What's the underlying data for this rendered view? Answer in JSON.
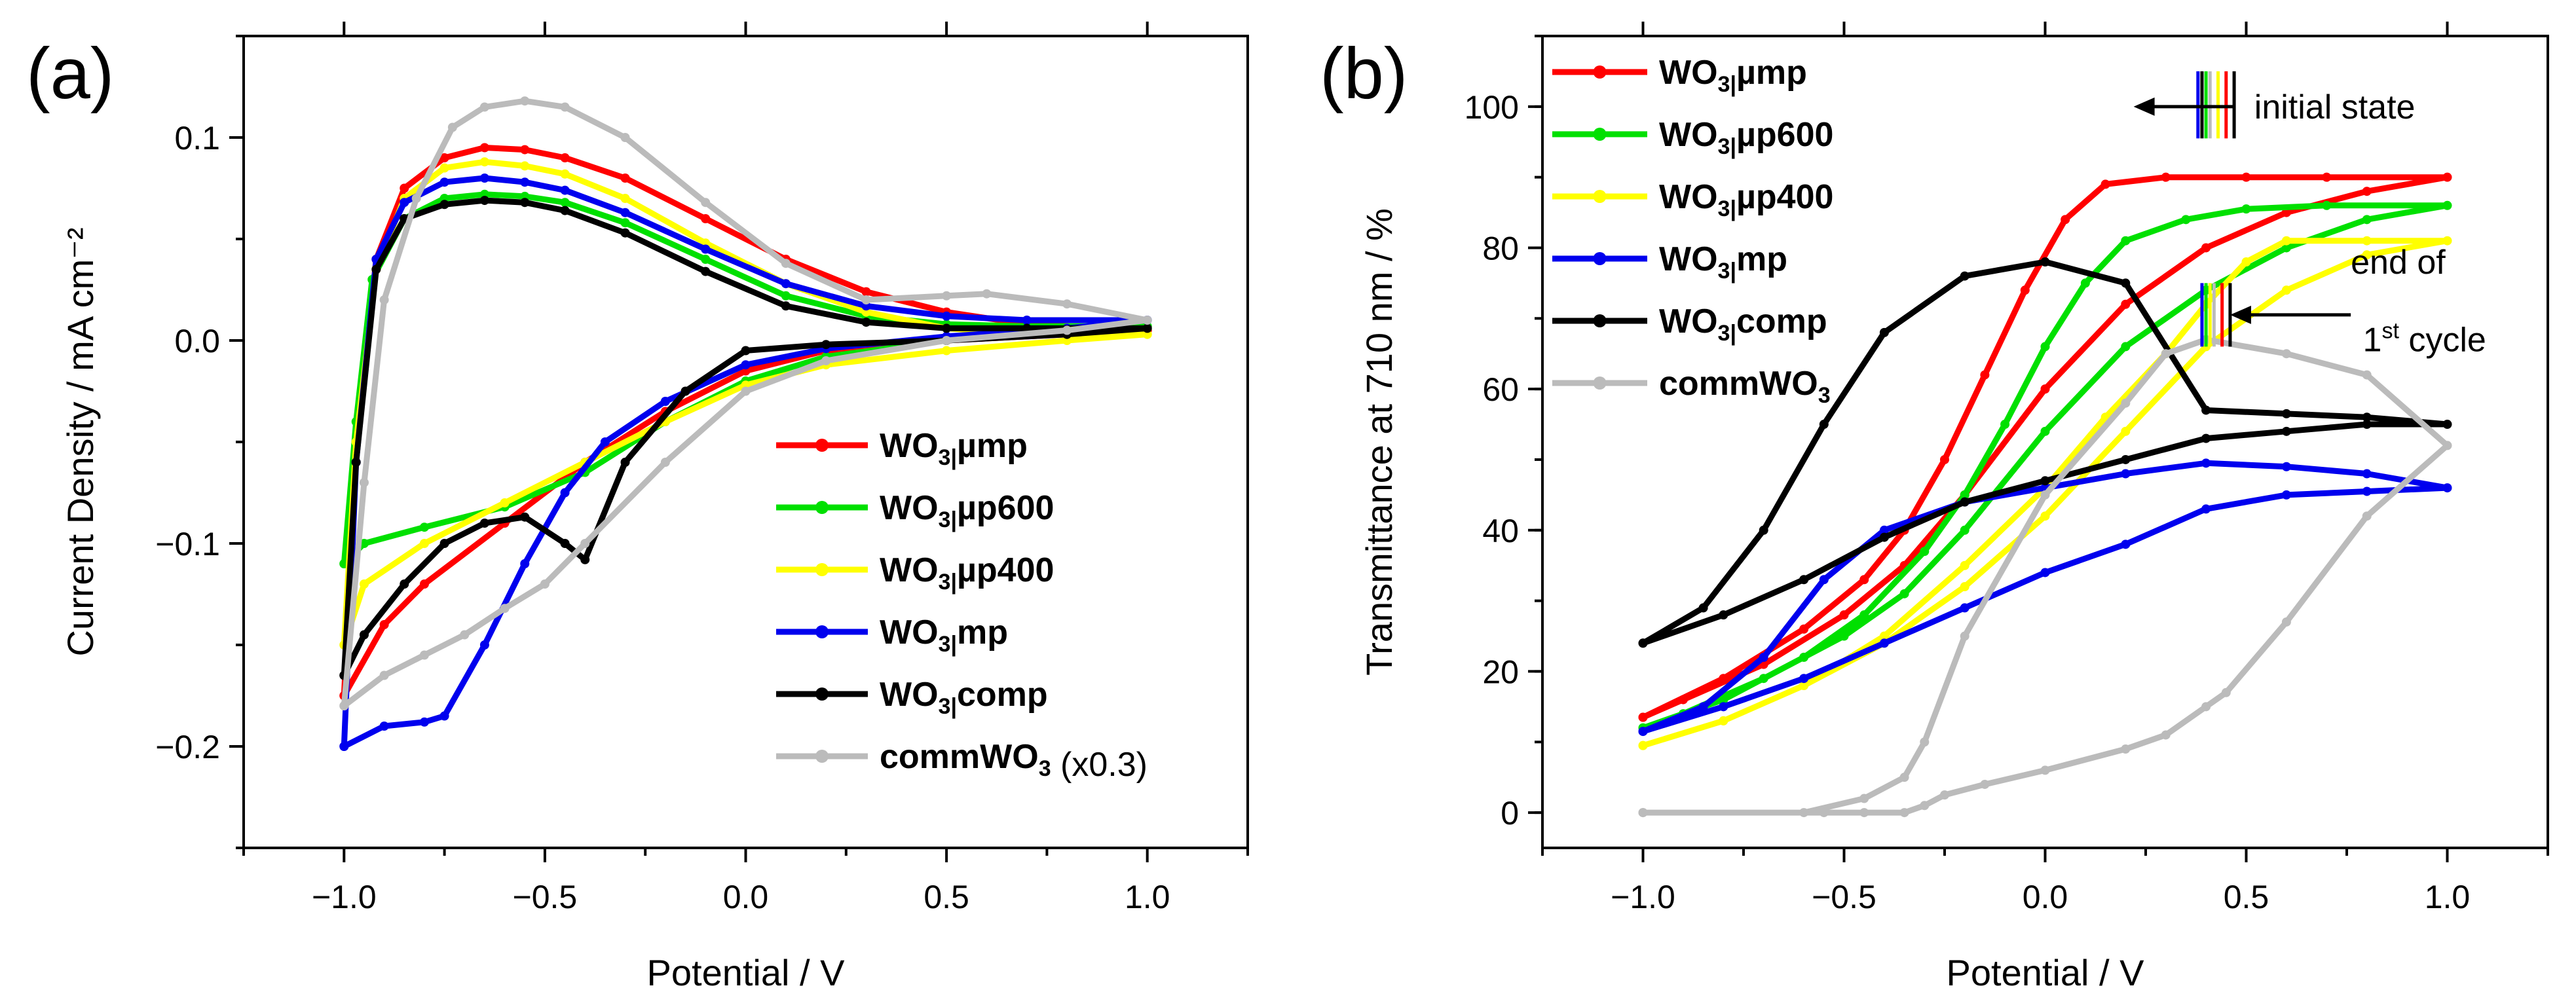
{
  "figure": {
    "panels": [
      "(a)",
      "(b)"
    ]
  },
  "colors": {
    "wo3_ump": "#ff0000",
    "wo3_up600": "#00e000",
    "wo3_up400": "#ffff00",
    "wo3_mp": "#0000ee",
    "wo3_comp": "#000000",
    "comm_wo3": "#bbbbbb"
  },
  "chart_data": [
    {
      "type": "line",
      "panel": "(a)",
      "xlabel": "Potential / V",
      "ylabel": "Current Density / mA cm⁻²",
      "xlim": [
        -1.25,
        1.25
      ],
      "ylim": [
        -0.25,
        0.15
      ],
      "xticks": [
        -1.0,
        -0.5,
        0.0,
        0.5,
        1.0
      ],
      "xtick_labels": [
        "−1.0",
        "−0.5",
        "0.0",
        "0.5",
        "1.0"
      ],
      "yticks": [
        -0.2,
        -0.1,
        0.0,
        0.1
      ],
      "ytick_labels": [
        "−0.2",
        "−0.1",
        "0.0",
        "0.1"
      ],
      "legend_position": "lower-right",
      "series": [
        {
          "name": "WO3|µmp",
          "sub": "3|",
          "pre": "WO",
          "post": "µmp",
          "suffix": "",
          "color_key": "wo3_ump",
          "marker": "circle",
          "x": [
            -1.0,
            -0.97,
            -0.92,
            -0.85,
            -0.75,
            -0.65,
            -0.55,
            -0.45,
            -0.3,
            -0.1,
            0.1,
            0.3,
            0.5,
            0.7,
            1.0,
            0.8,
            0.5,
            0.2,
            0.0,
            -0.2,
            -0.4,
            -0.6,
            -0.8,
            -0.9,
            -1.0
          ],
          "y": [
            -0.175,
            -0.05,
            0.04,
            0.075,
            0.09,
            0.095,
            0.094,
            0.09,
            0.08,
            0.06,
            0.04,
            0.024,
            0.014,
            0.008,
            0.005,
            0.003,
            0.0,
            -0.005,
            -0.015,
            -0.035,
            -0.06,
            -0.09,
            -0.12,
            -0.14,
            -0.175
          ]
        },
        {
          "name": "WO3|µp600",
          "sub": "3|",
          "pre": "WO",
          "post": "µp600",
          "suffix": "",
          "color_key": "wo3_up600",
          "marker": "square",
          "x": [
            -1.0,
            -0.97,
            -0.93,
            -0.85,
            -0.75,
            -0.65,
            -0.55,
            -0.45,
            -0.3,
            -0.1,
            0.1,
            0.3,
            0.5,
            0.7,
            1.0,
            0.8,
            0.5,
            0.2,
            0.0,
            -0.2,
            -0.4,
            -0.6,
            -0.8,
            -0.95,
            -1.0
          ],
          "y": [
            -0.11,
            -0.04,
            0.03,
            0.06,
            0.07,
            0.072,
            0.071,
            0.068,
            0.058,
            0.04,
            0.022,
            0.012,
            0.008,
            0.007,
            0.007,
            0.004,
            0.0,
            -0.008,
            -0.02,
            -0.04,
            -0.065,
            -0.082,
            -0.092,
            -0.1,
            -0.11
          ]
        },
        {
          "name": "WO3|µp400",
          "sub": "3|",
          "pre": "WO",
          "post": "µp400",
          "suffix": "",
          "color_key": "wo3_up400",
          "marker": "triangle",
          "x": [
            -1.0,
            -0.97,
            -0.92,
            -0.85,
            -0.75,
            -0.65,
            -0.55,
            -0.45,
            -0.3,
            -0.1,
            0.1,
            0.3,
            0.5,
            0.7,
            1.0,
            0.8,
            0.5,
            0.2,
            0.0,
            -0.2,
            -0.4,
            -0.6,
            -0.8,
            -0.95,
            -1.0
          ],
          "y": [
            -0.15,
            -0.05,
            0.035,
            0.07,
            0.085,
            0.088,
            0.086,
            0.082,
            0.07,
            0.048,
            0.028,
            0.014,
            0.006,
            0.003,
            0.003,
            0.0,
            -0.005,
            -0.012,
            -0.022,
            -0.04,
            -0.06,
            -0.08,
            -0.1,
            -0.12,
            -0.15
          ]
        },
        {
          "name": "WO3|mp",
          "sub": "3|",
          "pre": "WO",
          "post": "mp",
          "suffix": "",
          "color_key": "wo3_mp",
          "marker": "circle",
          "x": [
            -1.0,
            -0.97,
            -0.92,
            -0.85,
            -0.75,
            -0.65,
            -0.55,
            -0.45,
            -0.3,
            -0.1,
            0.1,
            0.3,
            0.5,
            0.7,
            1.0,
            0.8,
            0.5,
            0.2,
            0.0,
            -0.2,
            -0.35,
            -0.45,
            -0.55,
            -0.65,
            -0.75,
            -0.8,
            -0.9,
            -1.0
          ],
          "y": [
            -0.2,
            -0.06,
            0.04,
            0.068,
            0.078,
            0.08,
            0.078,
            0.074,
            0.063,
            0.045,
            0.028,
            0.017,
            0.012,
            0.01,
            0.01,
            0.006,
            0.002,
            -0.004,
            -0.012,
            -0.03,
            -0.05,
            -0.075,
            -0.11,
            -0.15,
            -0.185,
            -0.188,
            -0.19,
            -0.2
          ]
        },
        {
          "name": "WO3|comp",
          "sub": "3|",
          "pre": "WO",
          "post": "comp",
          "suffix": "",
          "color_key": "wo3_comp",
          "marker": "square",
          "x": [
            -1.0,
            -0.97,
            -0.92,
            -0.85,
            -0.75,
            -0.65,
            -0.55,
            -0.45,
            -0.3,
            -0.1,
            0.1,
            0.3,
            0.5,
            0.7,
            1.0,
            0.8,
            0.5,
            0.2,
            0.0,
            -0.15,
            -0.3,
            -0.4,
            -0.45,
            -0.55,
            -0.65,
            -0.75,
            -0.85,
            -0.95,
            -1.0
          ],
          "y": [
            -0.165,
            -0.06,
            0.035,
            0.06,
            0.067,
            0.069,
            0.068,
            0.064,
            0.053,
            0.034,
            0.017,
            0.009,
            0.006,
            0.006,
            0.006,
            0.003,
            0.0,
            -0.002,
            -0.005,
            -0.025,
            -0.06,
            -0.108,
            -0.1,
            -0.087,
            -0.09,
            -0.1,
            -0.12,
            -0.145,
            -0.165
          ]
        },
        {
          "name": "commWO3",
          "sub": "3",
          "pre": "commWO",
          "post": "",
          "suffix": " (x0.3)",
          "color_key": "comm_wo3",
          "marker": "circle",
          "x": [
            -1.0,
            -0.95,
            -0.9,
            -0.82,
            -0.73,
            -0.65,
            -0.55,
            -0.45,
            -0.3,
            -0.1,
            0.1,
            0.3,
            0.5,
            0.6,
            0.8,
            1.0,
            0.8,
            0.5,
            0.2,
            0.0,
            -0.2,
            -0.4,
            -0.5,
            -0.6,
            -0.7,
            -0.8,
            -0.9,
            -1.0
          ],
          "y": [
            -0.18,
            -0.07,
            0.02,
            0.07,
            0.105,
            0.115,
            0.118,
            0.115,
            0.1,
            0.068,
            0.038,
            0.02,
            0.022,
            0.023,
            0.018,
            0.01,
            0.005,
            0.0,
            -0.01,
            -0.025,
            -0.06,
            -0.1,
            -0.12,
            -0.132,
            -0.145,
            -0.155,
            -0.165,
            -0.18
          ]
        }
      ]
    },
    {
      "type": "line",
      "panel": "(b)",
      "xlabel": "Potential / V",
      "ylabel": "Transmittance at 710 nm / %",
      "xlim": [
        -1.25,
        1.25
      ],
      "ylim": [
        -5,
        110
      ],
      "xticks": [
        -1.0,
        -0.5,
        0.0,
        0.5,
        1.0
      ],
      "xtick_labels": [
        "−1.0",
        "−0.5",
        "0.0",
        "0.5",
        "1.0"
      ],
      "yticks": [
        0,
        20,
        40,
        60,
        80,
        100
      ],
      "ytick_labels": [
        "0",
        "20",
        "40",
        "60",
        "80",
        "100"
      ],
      "legend_position": "top-left",
      "annotations": {
        "initial_state": "initial state",
        "end_of_line1": "end of",
        "cycle_sup": "st",
        "cycle_num": "1",
        "cycle_word": " cycle",
        "marker_x_initial": [
          0.38,
          0.39,
          0.4,
          0.41,
          0.43,
          0.45,
          0.47
        ],
        "marker_x_end": [
          0.39,
          0.4,
          0.41,
          0.42,
          0.44,
          0.46
        ],
        "marker_colors_initial": [
          "wo3_mp",
          "wo3_comp",
          "wo3_up600",
          "comm_wo3",
          "wo3_up400",
          "wo3_ump",
          "wo3_comp"
        ],
        "marker_colors_end": [
          "wo3_mp",
          "wo3_up600",
          "wo3_up400",
          "comm_wo3",
          "wo3_ump",
          "wo3_comp"
        ]
      },
      "series": [
        {
          "name": "WO3|µmp",
          "sub": "3|",
          "pre": "WO",
          "post": "µmp",
          "suffix": "",
          "color_key": "wo3_ump",
          "marker": "circle",
          "x": [
            -1.0,
            -0.8,
            -0.6,
            -0.45,
            -0.35,
            -0.25,
            -0.15,
            -0.05,
            0.05,
            0.15,
            0.3,
            0.5,
            0.7,
            1.0,
            0.8,
            0.6,
            0.4,
            0.2,
            0.0,
            -0.2,
            -0.35,
            -0.5,
            -0.7,
            -0.9,
            -1.0
          ],
          "y": [
            13.5,
            19,
            26,
            33,
            40,
            50,
            62,
            74,
            84,
            89,
            90,
            90,
            90,
            90,
            88,
            85,
            80,
            72,
            60,
            45,
            35,
            28,
            21,
            16,
            13.5
          ]
        },
        {
          "name": "WO3|µp600",
          "sub": "3|",
          "pre": "WO",
          "post": "µp600",
          "suffix": "",
          "color_key": "wo3_up600",
          "marker": "square",
          "x": [
            -1.0,
            -0.8,
            -0.6,
            -0.45,
            -0.3,
            -0.2,
            -0.1,
            0.0,
            0.1,
            0.2,
            0.35,
            0.5,
            0.7,
            1.0,
            0.8,
            0.6,
            0.4,
            0.2,
            0.0,
            -0.2,
            -0.35,
            -0.5,
            -0.7,
            -0.9,
            -1.0
          ],
          "y": [
            12,
            16,
            22,
            28,
            37,
            45,
            55,
            66,
            75,
            81,
            84,
            85.5,
            86,
            86,
            84,
            80,
            74,
            66,
            54,
            40,
            31,
            25,
            19,
            14,
            12
          ]
        },
        {
          "name": "WO3|µp400",
          "sub": "3|",
          "pre": "WO",
          "post": "µp400",
          "suffix": "",
          "color_key": "wo3_up400",
          "marker": "triangle",
          "x": [
            -1.0,
            -0.8,
            -0.6,
            -0.4,
            -0.2,
            0.0,
            0.15,
            0.3,
            0.4,
            0.5,
            0.6,
            0.8,
            1.0,
            0.8,
            0.6,
            0.4,
            0.2,
            0.0,
            -0.2,
            -0.4,
            -0.6,
            -0.8,
            -1.0
          ],
          "y": [
            9.5,
            13,
            18,
            25,
            35,
            46,
            56,
            65,
            72,
            78,
            81,
            81,
            81,
            79,
            74,
            66,
            54,
            42,
            32,
            24,
            18,
            13,
            9.5
          ]
        },
        {
          "name": "WO3|mp",
          "sub": "3|",
          "pre": "WO",
          "post": "mp",
          "suffix": "",
          "color_key": "wo3_mp",
          "marker": "circle",
          "x": [
            -1.0,
            -0.8,
            -0.6,
            -0.4,
            -0.2,
            0.0,
            0.2,
            0.4,
            0.6,
            0.8,
            1.0,
            0.8,
            0.6,
            0.4,
            0.2,
            0.0,
            -0.2,
            -0.4,
            -0.55,
            -0.7,
            -0.85,
            -1.0
          ],
          "y": [
            11.5,
            15,
            19,
            24,
            29,
            34,
            38,
            43,
            45,
            45.5,
            46,
            48,
            49,
            49.5,
            48,
            46,
            44,
            40,
            33,
            22,
            15,
            11.5
          ]
        },
        {
          "name": "WO3|comp",
          "sub": "3|",
          "pre": "WO",
          "post": "comp",
          "suffix": "",
          "color_key": "wo3_comp",
          "marker": "square",
          "x": [
            -1.0,
            -0.8,
            -0.6,
            -0.4,
            -0.2,
            0.0,
            0.2,
            0.4,
            0.6,
            0.8,
            1.0,
            0.8,
            0.6,
            0.4,
            0.2,
            0.0,
            -0.2,
            -0.4,
            -0.55,
            -0.7,
            -0.85,
            -1.0
          ],
          "y": [
            24,
            28,
            33,
            39,
            44,
            47,
            50,
            53,
            54,
            55,
            55,
            56,
            56.5,
            57,
            75,
            78,
            76,
            68,
            55,
            40,
            29,
            24
          ]
        },
        {
          "name": "commWO3",
          "sub": "3",
          "pre": "commWO",
          "post": "",
          "suffix": "",
          "color_key": "comm_wo3",
          "marker": "circle",
          "x": [
            -1.0,
            -0.6,
            -0.45,
            -0.35,
            -0.3,
            -0.2,
            0.0,
            0.2,
            0.3,
            0.4,
            0.6,
            0.8,
            1.0,
            0.8,
            0.6,
            0.45,
            0.4,
            0.3,
            0.2,
            0.0,
            -0.15,
            -0.25,
            -0.3,
            -0.35,
            -0.45,
            -0.55,
            -1.0
          ],
          "y": [
            0,
            0,
            2,
            5,
            10,
            25,
            45,
            58,
            65,
            67,
            65,
            62,
            52,
            42,
            27,
            17,
            15,
            11,
            9,
            6,
            4,
            2.5,
            1,
            0,
            0,
            0,
            0
          ]
        }
      ]
    }
  ]
}
